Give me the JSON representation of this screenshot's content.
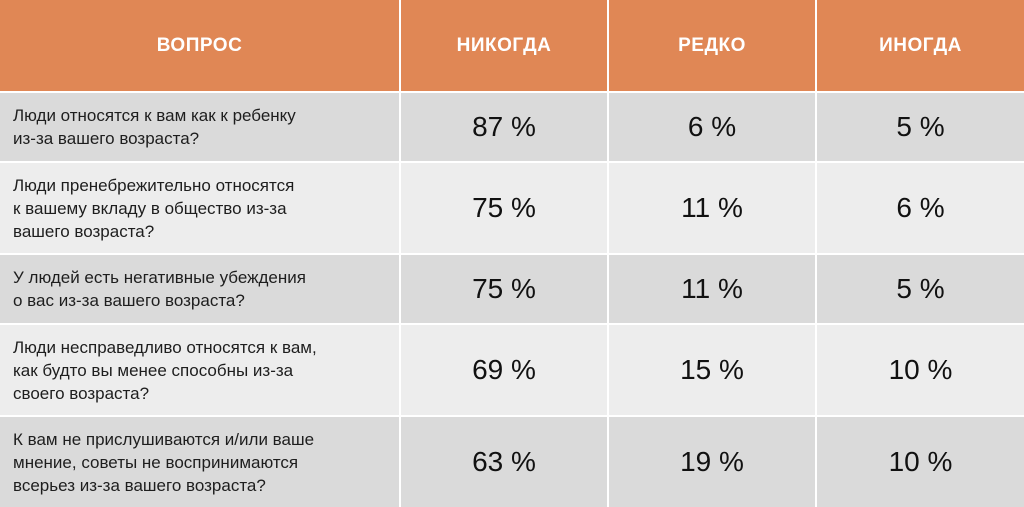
{
  "headers": {
    "question": "ВОПРОС",
    "never": "НИКОГДА",
    "rarely": "РЕДКО",
    "sometimes": "ИНОГДА"
  },
  "rows": [
    {
      "question": "Люди относятся к вам как к ребенку\nиз-за вашего возраста?",
      "never": "87 %",
      "rarely": "6 %",
      "sometimes": "5 %"
    },
    {
      "question": "Люди пренебрежительно относятся\nк вашему вкладу в общество из-за\nвашего возраста?",
      "never": "75 %",
      "rarely": "11 %",
      "sometimes": "6 %"
    },
    {
      "question": "У людей есть негативные убеждения\nо вас из-за вашего возраста?",
      "never": "75 %",
      "rarely": "11 %",
      "sometimes": "5 %"
    },
    {
      "question": "Люди несправедливо относятся к вам,\nкак будто вы менее способны из-за\nсвоего возраста?",
      "never": "69 %",
      "rarely": "15 %",
      "sometimes": "10 %"
    },
    {
      "question": "К вам не прислушиваются и/или ваше\nмнение, советы не воспринимаются\nвсерьез из-за вашего возраста?",
      "never": "63 %",
      "rarely": "19 %",
      "sometimes": "10 %"
    }
  ],
  "colors": {
    "header_bg": "#e08755",
    "row_odd": "#dadada",
    "row_even": "#ededed"
  }
}
